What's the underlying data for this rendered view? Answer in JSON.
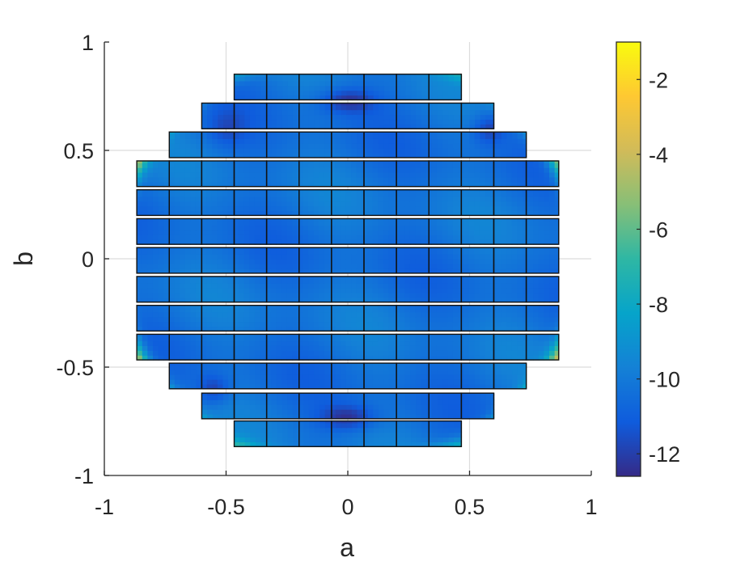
{
  "chart_data": {
    "type": "heatmap",
    "title": "",
    "xlabel": "a",
    "ylabel": "b",
    "xlim": [
      -1,
      1
    ],
    "ylim": [
      -1,
      1
    ],
    "grid": true,
    "x_ticks": [
      -1,
      -0.5,
      0,
      0.5,
      1
    ],
    "y_ticks": [
      -1,
      -0.5,
      0,
      0.5,
      1
    ],
    "x_tick_labels": [
      "-1",
      "-0.5",
      "0",
      "0.5",
      "1"
    ],
    "y_tick_labels": [
      "-1",
      "-0.5",
      "0",
      "0.5",
      "1"
    ],
    "colorbar": {
      "min": -12.6,
      "max": -1,
      "ticks": [
        -12,
        -10,
        -8,
        -6,
        -4,
        -2
      ],
      "tick_labels": [
        "-12",
        "-10",
        "-8",
        "-6",
        "-4",
        "-2"
      ],
      "colormap": "parula",
      "colors": [
        "#352a87",
        "#0f5cdd",
        "#1481d6",
        "#06a4ca",
        "#2eb7a4",
        "#87bf77",
        "#d1bb59",
        "#fec832",
        "#f9fb0e"
      ]
    },
    "mesh": {
      "cell_width": 0.1333,
      "cell_height": 0.1183,
      "row_y_bottoms": [
        -0.8667,
        -0.7383,
        -0.6,
        -0.4667,
        -0.3333,
        -0.2,
        -0.0667,
        0.0667,
        0.2,
        0.3333,
        0.4667,
        0.6,
        0.7333
      ],
      "row_x_ranges": [
        [
          -0.4667,
          0.4667
        ],
        [
          -0.6,
          0.6
        ],
        [
          -0.7333,
          0.7333
        ],
        [
          -0.8667,
          0.8667
        ],
        [
          -0.8667,
          0.8667
        ],
        [
          -0.8667,
          0.8667
        ],
        [
          -0.8667,
          0.8667
        ],
        [
          -0.8667,
          0.8667
        ],
        [
          -0.8667,
          0.8667
        ],
        [
          -0.8667,
          0.8667
        ],
        [
          -0.7333,
          0.7333
        ],
        [
          -0.6,
          0.6
        ],
        [
          -0.4667,
          0.4667
        ]
      ],
      "field_base_value": -10.3
    }
  }
}
